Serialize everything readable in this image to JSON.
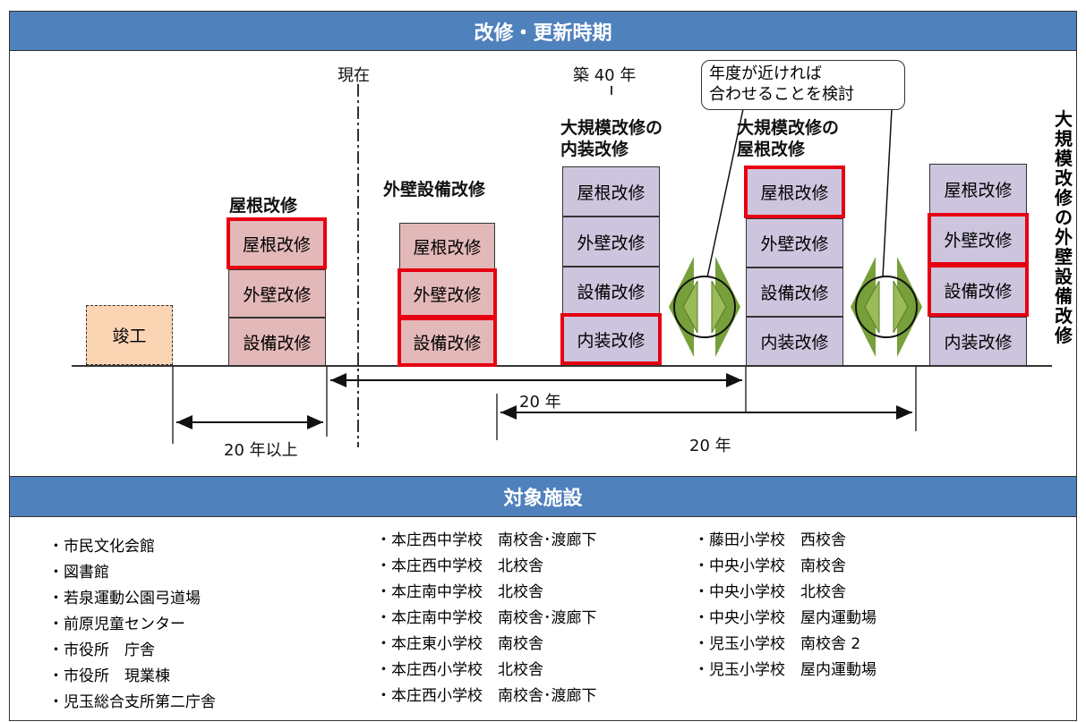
{
  "header_text": "",
  "section_timing": {
    "title": "改修・更新時期"
  },
  "section_facilities": {
    "title": "対象施設"
  },
  "timeline": {
    "label_now": "現在",
    "label_40y": "築 40 年",
    "label_completion": "竣工",
    "span_20y_plus": "20 年以上",
    "span_20y_a": "20 年",
    "span_20y_b": "20 年"
  },
  "callout": {
    "line1": "年度が近ければ",
    "line2": "合わせることを検討"
  },
  "stacks": [
    {
      "heading": "屋根改修",
      "items": [
        "屋根改修",
        "外壁改修",
        "設備改修"
      ]
    },
    {
      "heading": "外壁設備改修",
      "items": [
        "屋根改修",
        "外壁改修",
        "設備改修"
      ]
    },
    {
      "heading_line1": "大規模改修の",
      "heading_line2": "内装改修",
      "items": [
        "屋根改修",
        "外壁改修",
        "設備改修",
        "内装改修"
      ]
    },
    {
      "heading_line1": "大規模改修の",
      "heading_line2": "屋根改修",
      "items": [
        "屋根改修",
        "外壁改修",
        "設備改修",
        "内装改修"
      ]
    },
    {
      "heading_vertical": [
        "大",
        "規",
        "模",
        "改",
        "修",
        "の",
        "外",
        "壁",
        "設",
        "備",
        "改",
        "修"
      ],
      "items": [
        "屋根改修",
        "外壁改修",
        "設備改修",
        "内装改修"
      ]
    }
  ],
  "facilities": {
    "col1": [
      "・市民文化会館",
      "・図書館",
      "・若泉運動公園弓道場",
      "・前原児童センター",
      "・市役所　庁舎",
      "・市役所　現業棟",
      "・児玉総合支所第二庁舎"
    ],
    "col2": [
      "・本庄西中学校　南校舎･渡廊下",
      "・本庄西中学校　北校舎",
      "・本庄南中学校　北校舎",
      "・本庄南中学校　南校舎･渡廊下",
      "・本庄東小学校　南校舎",
      "・本庄西小学校　北校舎",
      "・本庄西小学校　南校舎･渡廊下"
    ],
    "col3": [
      "・藤田小学校　西校舎",
      "・中央小学校　南校舎",
      "・中央小学校　北校舎",
      "・中央小学校　屋内運動場",
      "・児玉小学校　南校舎 2",
      "・児玉小学校　屋内運動場"
    ]
  },
  "colors": {
    "header_blue": "#4f81bd",
    "highlight_red": "#e60012",
    "pink": "#e3b8b8",
    "purple": "#cdc5de",
    "completion_orange": "#fbd4b4",
    "green": "#77a03a"
  }
}
